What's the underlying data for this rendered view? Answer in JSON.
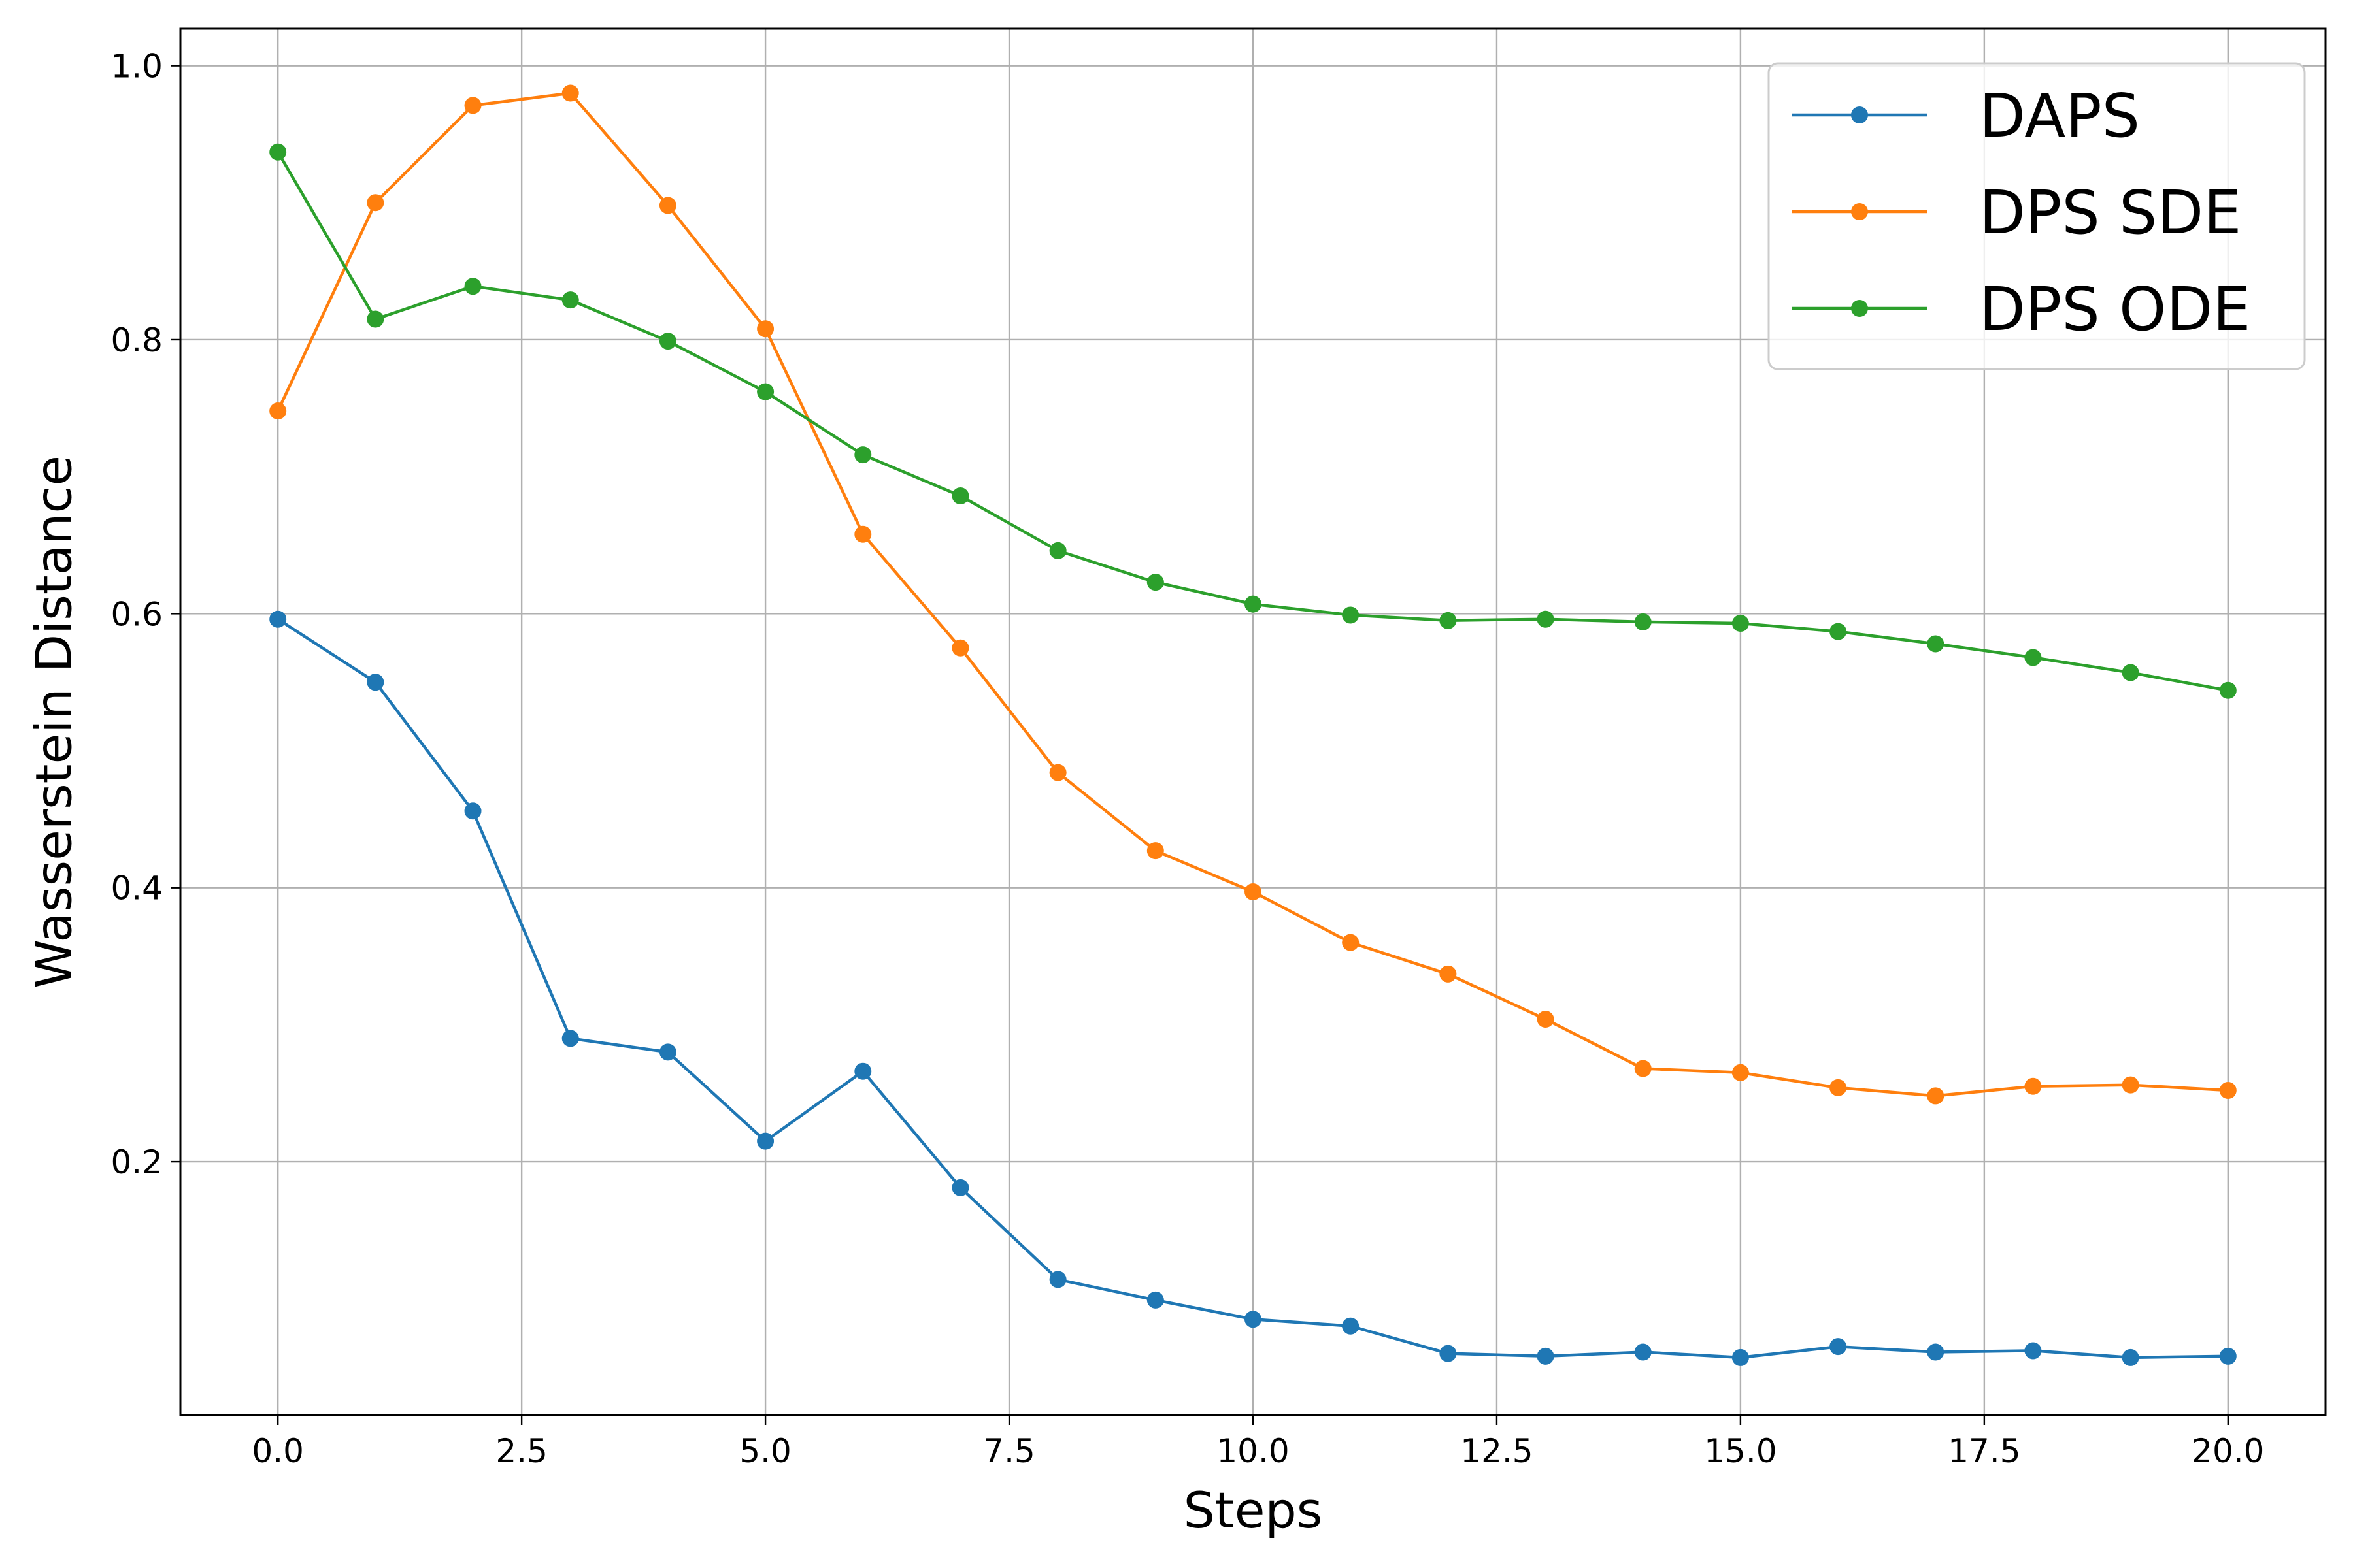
{
  "chart_data": {
    "type": "line",
    "title": "",
    "xlabel": "Steps",
    "ylabel": "Wasserstein Distance",
    "xlim": [
      -1,
      21
    ],
    "ylim": [
      0.015,
      1.027
    ],
    "xticks": [
      0.0,
      2.5,
      5.0,
      7.5,
      10.0,
      12.5,
      15.0,
      17.5,
      20.0
    ],
    "xtick_labels": [
      "0.0",
      "2.5",
      "5.0",
      "7.5",
      "10.0",
      "12.5",
      "15.0",
      "17.5",
      "20.0"
    ],
    "yticks": [
      0.2,
      0.4,
      0.6,
      0.8,
      1.0
    ],
    "ytick_labels": [
      "0.2",
      "0.4",
      "0.6",
      "0.8",
      "1.0"
    ],
    "grid": true,
    "legend_position": "top-right",
    "x": [
      0,
      1,
      2,
      3,
      4,
      5,
      6,
      7,
      8,
      9,
      10,
      11,
      12,
      13,
      14,
      15,
      16,
      17,
      18,
      19,
      20
    ],
    "series": [
      {
        "name": "DAPS",
        "color": "#1f77b4",
        "values": [
          0.596,
          0.55,
          0.456,
          0.29,
          0.28,
          0.215,
          0.266,
          0.181,
          0.114,
          0.099,
          0.085,
          0.08,
          0.06,
          0.058,
          0.061,
          0.057,
          0.065,
          0.061,
          0.062,
          0.057,
          0.058
        ]
      },
      {
        "name": "DPS SDE",
        "color": "#ff7f0e",
        "values": [
          0.748,
          0.9,
          0.971,
          0.98,
          0.898,
          0.808,
          0.658,
          0.575,
          0.484,
          0.427,
          0.397,
          0.36,
          0.337,
          0.304,
          0.268,
          0.265,
          0.254,
          0.248,
          0.255,
          0.256,
          0.252
        ]
      },
      {
        "name": "DPS ODE",
        "color": "#2ca02c",
        "values": [
          0.937,
          0.815,
          0.839,
          0.829,
          0.799,
          0.762,
          0.716,
          0.686,
          0.646,
          0.623,
          0.607,
          0.599,
          0.595,
          0.596,
          0.594,
          0.593,
          0.587,
          0.578,
          0.568,
          0.557,
          0.544
        ]
      }
    ]
  }
}
